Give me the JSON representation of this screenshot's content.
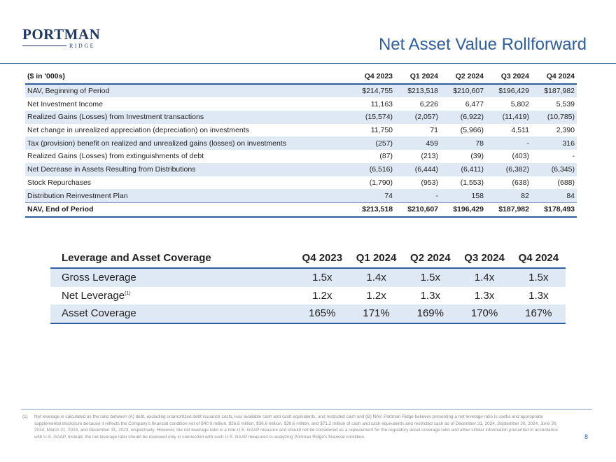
{
  "logo": {
    "main": "PORTMAN",
    "sub": "RIDGE"
  },
  "title": "Net Asset Value Rollforward",
  "nav_table": {
    "headers": [
      "($ in '000s)",
      "Q4 2023",
      "Q1 2024",
      "Q2 2024",
      "Q3 2024",
      "Q4 2024"
    ],
    "rows": [
      {
        "label": "NAV, Beginning of Period",
        "values": [
          "$214,755",
          "$213,518",
          "$210,607",
          "$196,429",
          "$187,982"
        ]
      },
      {
        "label": "Net Investment Income",
        "values": [
          "11,163",
          "6,226",
          "6,477",
          "5,802",
          "5,539"
        ]
      },
      {
        "label": "Realized Gains (Losses) from Investment transactions",
        "values": [
          "(15,574)",
          "(2,057)",
          "(6,922)",
          "(11,419)",
          "(10,785)"
        ]
      },
      {
        "label": "Net change in unrealized appreciation (depreciation) on investments",
        "values": [
          "11,750",
          "71",
          "(5,966)",
          "4,511",
          "2,390"
        ]
      },
      {
        "label": "Tax (provision) benefit on realized and unrealized gains (losses) on investments",
        "values": [
          "(257)",
          "459",
          "78",
          "-",
          "316"
        ]
      },
      {
        "label": "Realized Gains (Losses) from extinguishments of debt",
        "values": [
          "(87)",
          "(213)",
          "(39)",
          "(403)",
          "-"
        ]
      },
      {
        "label": "Net Decrease in Assets Resulting from Distributions",
        "values": [
          "(6,516)",
          "(6,444)",
          "(6,411)",
          "(6,382)",
          "(6,345)"
        ]
      },
      {
        "label": "Stock Repurchases",
        "values": [
          "(1,790)",
          "(953)",
          "(1,553)",
          "(638)",
          "(688)"
        ]
      },
      {
        "label": "Distribution Reinvestment Plan",
        "values": [
          "74",
          "-",
          "158",
          "82",
          "84"
        ]
      }
    ],
    "total": {
      "label": "NAV, End of Period",
      "values": [
        "$213,518",
        "$210,607",
        "$196,429",
        "$187,982",
        "$178,493"
      ]
    }
  },
  "leverage_table": {
    "headers": [
      "Leverage and Asset Coverage",
      "Q4 2023",
      "Q1 2024",
      "Q2 2024",
      "Q3 2024",
      "Q4 2024"
    ],
    "rows": [
      {
        "label": "Gross Leverage",
        "sup": "",
        "values": [
          "1.5x",
          "1.4x",
          "1.5x",
          "1.4x",
          "1.5x"
        ]
      },
      {
        "label": "Net Leverage",
        "sup": "(1)",
        "values": [
          "1.2x",
          "1.2x",
          "1.3x",
          "1.3x",
          "1.3x"
        ]
      },
      {
        "label": "Asset Coverage",
        "sup": "",
        "values": [
          "165%",
          "171%",
          "169%",
          "170%",
          "167%"
        ]
      }
    ]
  },
  "footnote": {
    "number": "(1)",
    "text": "Net leverage is calculated as the ratio between (A) debt, excluding unamortized debt issuance costs, less available cash and cash equivalents, and restricted cash and (B) NAV. Portman Ridge believes presenting a net leverage ratio is useful and appropriate supplemental disclosure because it reflects the Company's financial condition net of $40.0 million, $26.8 million, $36.6 million, $39.6 million, and $71.2 million of cash and cash equivalents and restricted cash as of December 31, 2024, September 30, 2024, June 30, 2024, March 31, 2024, and December 31, 2023, respectively. However, the net leverage ratio is a non-U.S. GAAP measure and should not be considered as a replacement for the regulatory asset coverage ratio and other similar information presented in accordance with U.S. GAAP. Instead, the net leverage ratio should be reviewed only in connection with such U.S. GAAP measures in analyzing Portman Ridge's financial condition."
  },
  "page_number": "8"
}
